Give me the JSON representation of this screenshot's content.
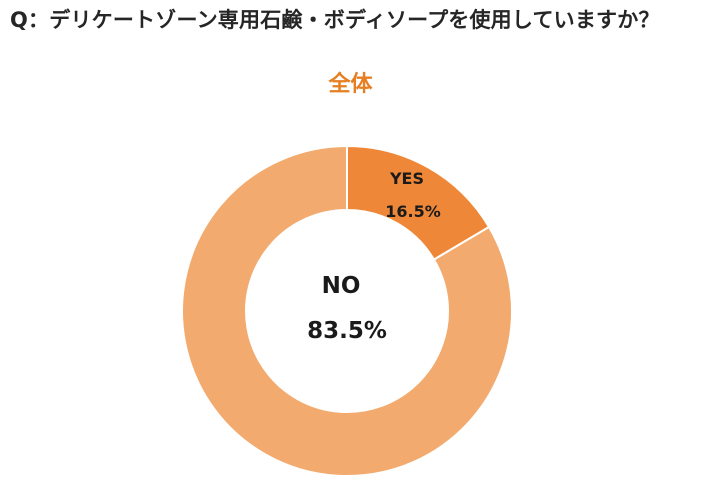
{
  "question": "Q：デリケートゾーン専用石鹸・ボディソープを使用していますか？",
  "chart_data": {
    "type": "pie",
    "donut": true,
    "title": "全体",
    "categories": [
      "YES",
      "NO"
    ],
    "values": [
      16.5,
      83.5
    ],
    "unit": "%",
    "labels": [
      {
        "name": "YES",
        "value_text": "16.5%"
      },
      {
        "name": "NO",
        "value_text": "83.5%"
      }
    ],
    "colors": [
      "#ee8838",
      "#f3aa6e"
    ],
    "title_color": "#e57f22"
  }
}
